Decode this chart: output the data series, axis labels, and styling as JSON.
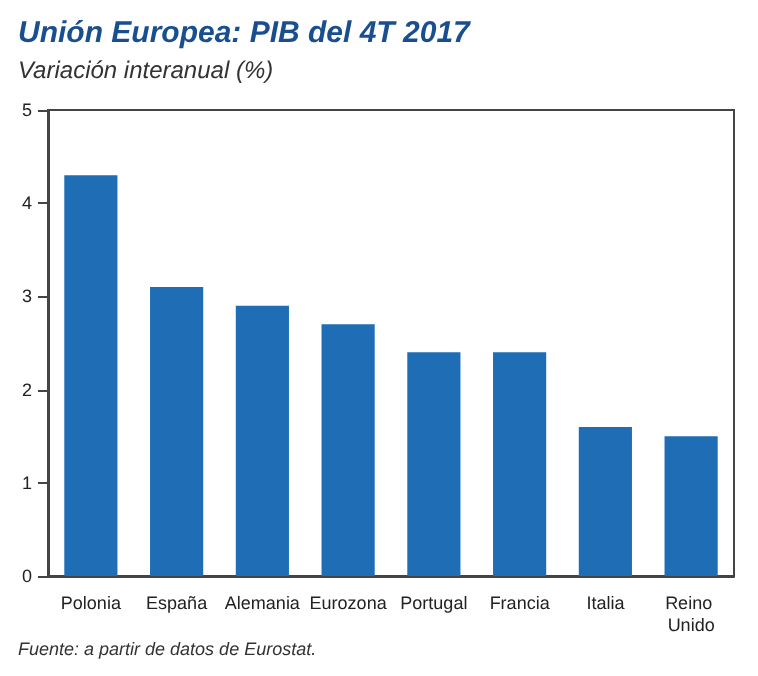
{
  "chart_data": {
    "type": "bar",
    "title": "Unión Europea: PIB del 4T 2017",
    "subtitle": "Variación interanual (%)",
    "categories": [
      "Polonia",
      "España",
      "Alemania",
      "Eurozona",
      "Portugal",
      "Francia",
      "Italia",
      "Reino Unido"
    ],
    "values": [
      4.3,
      3.1,
      2.9,
      2.7,
      2.4,
      2.4,
      1.6,
      1.5
    ],
    "color": "#1e6db5",
    "ylim": [
      0,
      5
    ],
    "yticks": [
      0,
      1,
      2,
      3,
      4,
      5
    ],
    "grid": false,
    "annotations": [
      "Fuente: a partir de datos de Eurostat."
    ]
  }
}
